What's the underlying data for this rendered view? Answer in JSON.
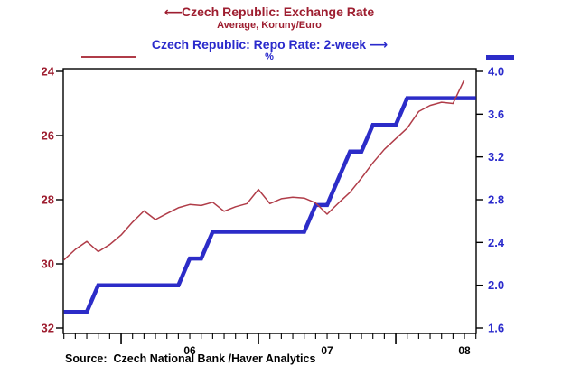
{
  "header": {
    "series1_arrow": "⟵",
    "series1_title": "Czech Republic: Exchange Rate",
    "series1_subtitle": "Average, Koruny/Euro",
    "series2_title": "Czech Republic: Repo Rate: 2-week",
    "series2_arrow": "⟶",
    "series2_subtitle": "%"
  },
  "source_note": "Source:  Czech National Bank /Haver Analytics",
  "colors": {
    "exchange_rate_line": "#b03c48",
    "exchange_rate_text": "#9e1e30",
    "repo_rate_line": "#2c2cc8",
    "repo_rate_text": "#2a2acc",
    "axis": "#000000",
    "background": "#ffffff"
  },
  "chart_data": {
    "type": "line",
    "title": "Czech Republic: Exchange Rate / Czech Republic: Repo Rate: 2-week",
    "x_axis": {
      "unit": "month",
      "start_month": "2005-08",
      "end_month": "2008-08",
      "year_tick_labels": [
        "06",
        "07",
        "08"
      ],
      "grid": false
    },
    "left_axis": {
      "series": "exchange_rate",
      "label": "Average, Koruny/Euro",
      "tick_labels": [
        24,
        26,
        28,
        30,
        32
      ],
      "range": [
        24,
        32
      ],
      "inverted": true
    },
    "right_axis": {
      "series": "repo_rate",
      "label": "%",
      "tick_labels": [
        "4.0",
        "3.6",
        "3.2",
        "2.8",
        "2.4",
        "2.0",
        "1.6"
      ],
      "range": [
        1.6,
        4.0
      ]
    },
    "series": [
      {
        "id": "exchange_rate",
        "name": "Czech Republic: Exchange Rate (Average, Koruny/Euro)",
        "axis": "left",
        "start_month": "2005-08",
        "values": [
          29.88,
          29.55,
          29.3,
          29.62,
          29.4,
          29.1,
          28.7,
          28.35,
          28.62,
          28.43,
          28.25,
          28.15,
          28.18,
          28.08,
          28.36,
          28.22,
          28.12,
          27.68,
          28.12,
          27.97,
          27.92,
          27.95,
          28.1,
          28.45,
          28.1,
          27.77,
          27.33,
          26.85,
          26.43,
          26.1,
          25.77,
          25.25,
          25.06,
          24.96,
          25.0,
          24.25
        ]
      },
      {
        "id": "repo_rate",
        "name": "Czech Republic: Repo Rate: 2-week (%)",
        "axis": "right",
        "start_month": "2005-08",
        "values": [
          1.75,
          1.75,
          1.75,
          2.0,
          2.0,
          2.0,
          2.0,
          2.0,
          2.0,
          2.0,
          2.0,
          2.25,
          2.25,
          2.5,
          2.5,
          2.5,
          2.5,
          2.5,
          2.5,
          2.5,
          2.5,
          2.5,
          2.75,
          2.75,
          3.0,
          3.25,
          3.25,
          3.5,
          3.5,
          3.5,
          3.75,
          3.75,
          3.75,
          3.75,
          3.75,
          3.75,
          3.75
        ]
      }
    ]
  }
}
